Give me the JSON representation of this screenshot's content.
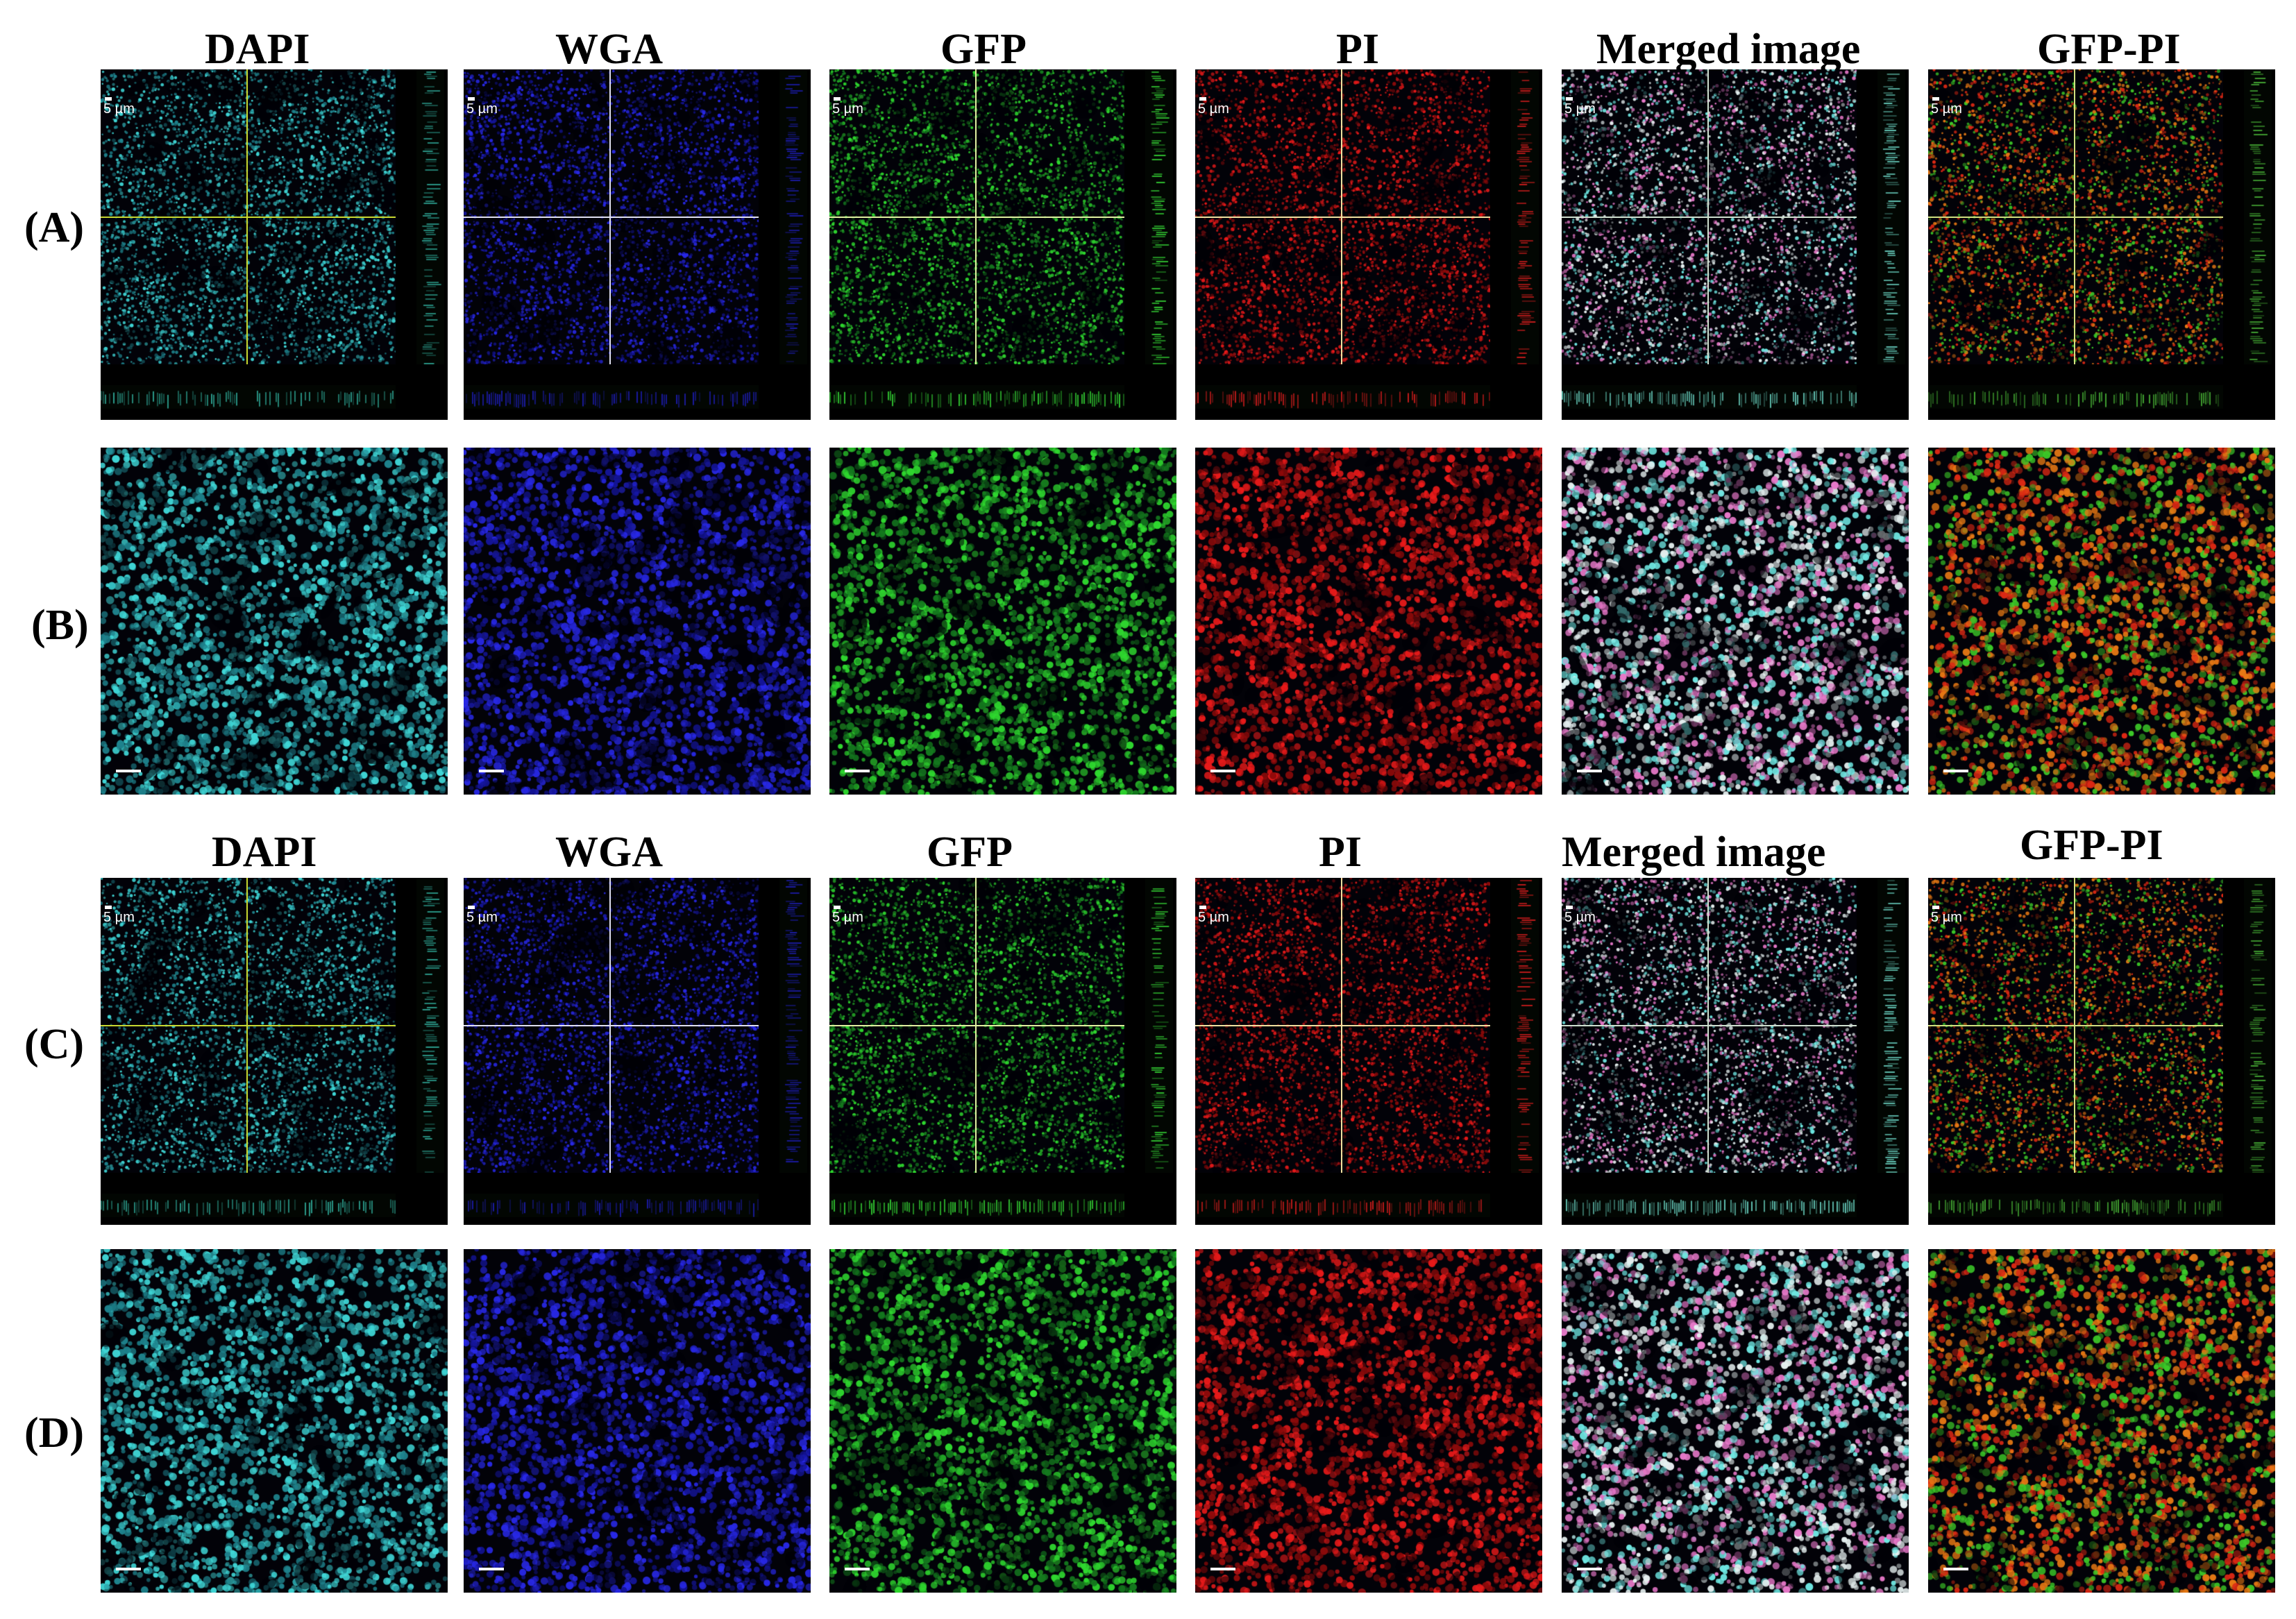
{
  "sections": [
    {
      "headers": [
        "DAPI",
        "WGA",
        "GFP",
        "PI",
        "Merged image",
        "GFP-PI"
      ],
      "rows": [
        {
          "label": "(A)",
          "kind": "ortho"
        },
        {
          "label": "(B)",
          "kind": "zoom"
        }
      ]
    },
    {
      "headers": [
        "DAPI",
        "WGA",
        "GFP",
        "PI",
        "Merged image",
        "GFP-PI"
      ],
      "rows": [
        {
          "label": "(C)",
          "kind": "ortho"
        },
        {
          "label": "(D)",
          "kind": "zoom"
        }
      ]
    }
  ],
  "scale_bar_text": "5 µm",
  "channels": {
    "DAPI": {
      "color": "#3fd6d6"
    },
    "WGA": {
      "color": "#2a2ae8"
    },
    "GFP": {
      "color": "#2fd82f"
    },
    "PI": {
      "color": "#e81a1a"
    },
    "Merged image": {
      "color": "#7fe6e0"
    },
    "GFP-PI": {
      "color": "#c8a020"
    }
  },
  "crosshair_colors": {
    "DAPI": "#c8d830",
    "WGA": "#e0e0f0",
    "GFP": "#e0f0a0",
    "PI": "#f0e0a0",
    "Merged image": "#d0e0d0",
    "GFP-PI": "#d0e080"
  }
}
